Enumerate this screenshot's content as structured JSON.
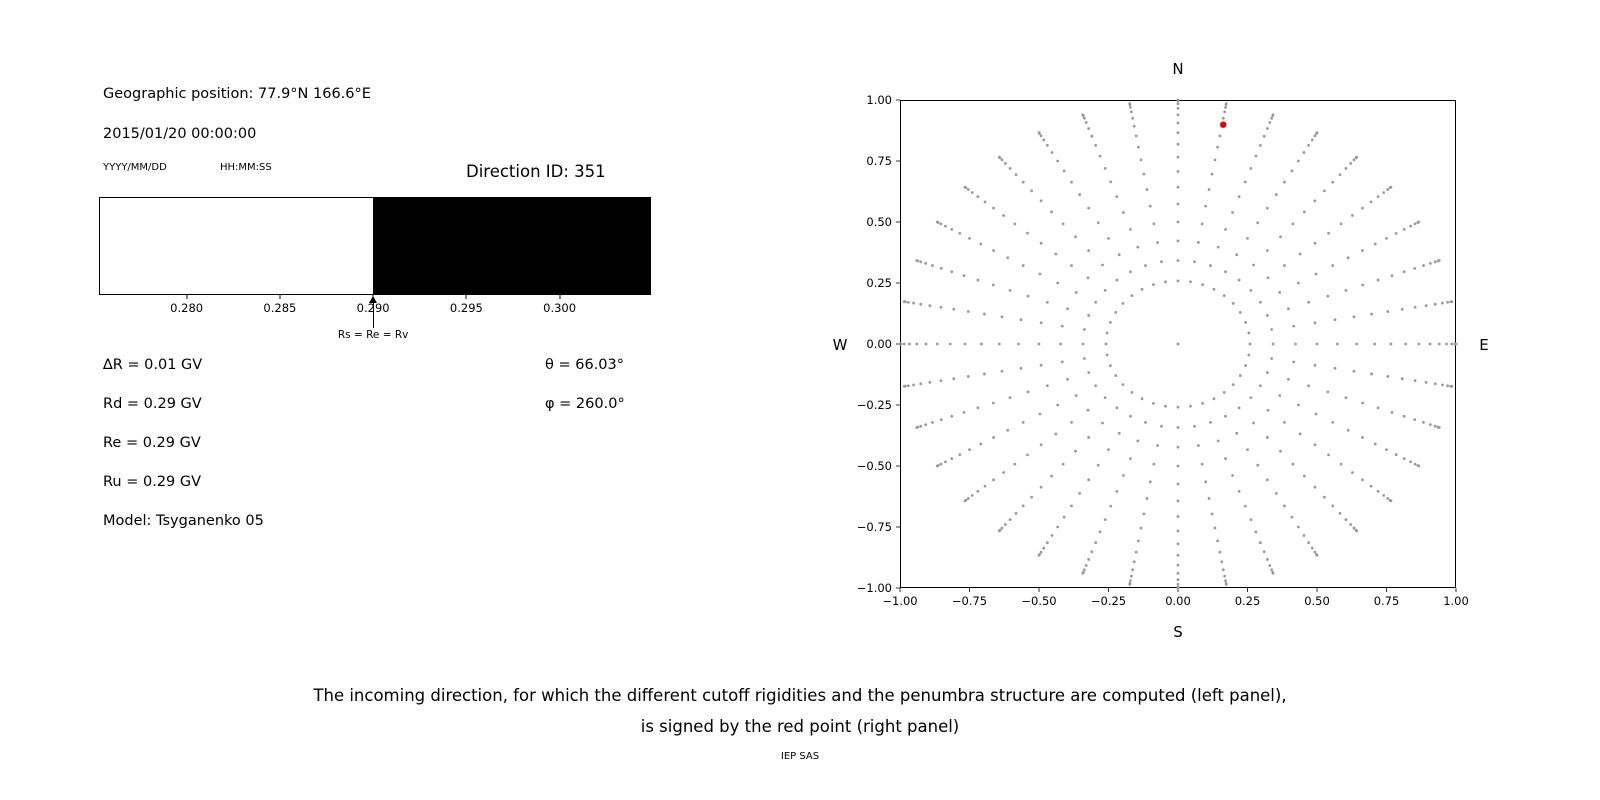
{
  "left_panel": {
    "geo_position": "Geographic position: 77.9°N 166.6°E",
    "datetime": "2015/01/20 00:00:00",
    "date_format_label": "YYYY/MM/DD",
    "time_format_label": "HH:MM:SS",
    "direction_id": "Direction ID: 351",
    "delta_r": "∆R = 0.01 GV",
    "rd": "Rd = 0.29 GV",
    "re": "Re = 0.29 GV",
    "ru": "Ru = 0.29 GV",
    "model": "Model: Tsyganenko 05",
    "theta": "θ = 66.03°",
    "phi": "φ = 260.0°"
  },
  "caption": {
    "line1": "The incoming direction, for which the different cutoff rigidities and the penumbra structure are computed (left panel),",
    "line2": "is signed by the red point (right panel)",
    "credit": "IEP SAS"
  },
  "chart_data": [
    {
      "id": "penumbra-structure",
      "type": "area",
      "description": "Penumbra structure around the cutoff rigidity: white = below cutoff, black = allowed rigidities above cutoff",
      "x_range": [
        0.2753,
        0.3049
      ],
      "x_ticks": [
        "0.280",
        "0.285",
        "0.290",
        "0.295",
        "0.300"
      ],
      "x_tick_values": [
        0.28,
        0.285,
        0.29,
        0.295,
        0.3
      ],
      "regions": [
        {
          "from": 0.2753,
          "to": 0.29,
          "color": "#ffffff"
        },
        {
          "from": 0.29,
          "to": 0.3049,
          "color": "#000000"
        }
      ],
      "annotation": {
        "x": 0.29,
        "label": "Rs = Re = Rv"
      }
    },
    {
      "id": "incoming-direction-sky-plot",
      "type": "scatter",
      "description": "Grid of incoming directions projected on the sky (radius = sin(zenith), azimuth measured from N); the red point marks the computed direction",
      "compass": {
        "top": "N",
        "bottom": "S",
        "left": "W",
        "right": "E"
      },
      "x_range": [
        -1,
        1
      ],
      "y_range": [
        -1,
        1
      ],
      "x_ticks": [
        "−1.00",
        "−0.75",
        "−0.50",
        "−0.25",
        "0.00",
        "0.25",
        "0.50",
        "0.75",
        "1.00"
      ],
      "x_tick_values": [
        -1,
        -0.75,
        -0.5,
        -0.25,
        0,
        0.25,
        0.5,
        0.75,
        1
      ],
      "y_ticks": [
        "1.00",
        "0.75",
        "0.50",
        "0.25",
        "0.00",
        "−0.25",
        "−0.50",
        "−0.75",
        "−1.00"
      ],
      "y_tick_values": [
        1,
        0.75,
        0.5,
        0.25,
        0,
        -0.25,
        -0.5,
        -0.75,
        -1
      ],
      "grid": {
        "azimuth_start_deg": 0,
        "azimuth_step_deg": 10,
        "azimuth_count": 36,
        "zenith_min_deg": 15,
        "zenith_max_deg": 90,
        "zenith_step_deg": 5,
        "center_point": true,
        "radius_formula": "sin(zenith)",
        "color": "#999999",
        "marker_radius_px": 1.4
      },
      "highlight_point": {
        "x": 0.163,
        "y": 0.899,
        "theta_deg": 66.03,
        "phi_deg": 260.0,
        "color": "#e00000",
        "label": "selected incoming direction",
        "marker_radius_px": 3.2
      }
    }
  ]
}
